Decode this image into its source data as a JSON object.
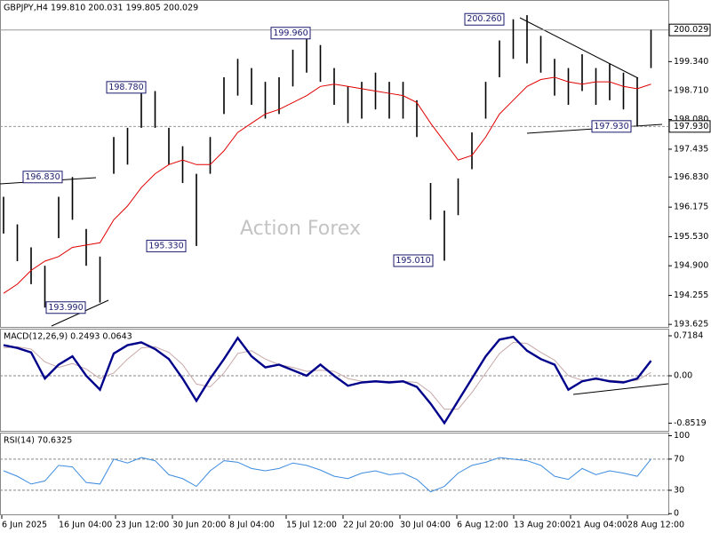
{
  "chart_data": [
    {
      "type": "ohlc",
      "title": "GBPJPY,H4  199.810 200.031 199.805 200.029",
      "watermark": "Action Forex",
      "ylim": [
        193.57,
        200.68
      ],
      "yticks": [
        {
          "value": 199.34,
          "label": "199.340"
        },
        {
          "value": 198.71,
          "label": "198.710"
        },
        {
          "value": 198.08,
          "label": "198.080"
        },
        {
          "value": 197.435,
          "label": "197.435"
        },
        {
          "value": 196.83,
          "label": "196.830"
        },
        {
          "value": 196.175,
          "label": "196.175"
        },
        {
          "value": 195.53,
          "label": "195.530"
        },
        {
          "value": 194.9,
          "label": "194.900"
        },
        {
          "value": 194.255,
          "label": "194.255"
        },
        {
          "value": 193.625,
          "label": "193.625"
        }
      ],
      "series": [
        {
          "name": "High",
          "color": "#000000",
          "values": [
            196.4,
            195.8,
            195.3,
            194.9,
            196.4,
            196.83,
            195.7,
            195.1,
            197.7,
            197.9,
            198.78,
            198.7,
            197.9,
            197.5,
            196.9,
            197.7,
            199.0,
            199.4,
            199.2,
            198.9,
            199.0,
            199.6,
            199.96,
            199.7,
            199.2,
            198.8,
            198.9,
            199.1,
            198.9,
            198.9,
            198.5,
            196.7,
            196.1,
            196.8,
            197.8,
            198.9,
            199.8,
            200.26,
            200.35,
            199.9,
            199.4,
            199.2,
            199.5,
            199.2,
            199.3,
            199.1,
            199.0,
            200.03
          ]
        },
        {
          "name": "Low",
          "color": "#000000",
          "values": [
            195.6,
            195.0,
            194.5,
            193.99,
            195.5,
            195.9,
            194.9,
            194.1,
            196.9,
            197.1,
            197.9,
            197.9,
            197.1,
            196.7,
            195.33,
            196.9,
            198.2,
            198.6,
            198.4,
            198.1,
            198.2,
            198.8,
            199.1,
            198.9,
            198.4,
            198.0,
            198.1,
            198.3,
            198.1,
            198.1,
            197.7,
            195.9,
            195.01,
            196.0,
            197.0,
            198.1,
            199.0,
            199.4,
            199.3,
            199.1,
            198.6,
            198.4,
            198.7,
            198.4,
            198.5,
            198.3,
            197.93,
            199.2
          ]
        },
        {
          "name": "MA",
          "color": "#e00000",
          "values": [
            194.3,
            194.5,
            194.8,
            195.0,
            195.1,
            195.3,
            195.35,
            195.4,
            195.9,
            196.2,
            196.6,
            196.9,
            197.1,
            197.2,
            197.1,
            197.1,
            197.4,
            197.8,
            198.0,
            198.2,
            198.3,
            198.45,
            198.6,
            198.8,
            198.85,
            198.8,
            198.75,
            198.7,
            198.65,
            198.6,
            198.45,
            198.0,
            197.6,
            197.2,
            197.3,
            197.7,
            198.2,
            198.5,
            198.8,
            198.95,
            199.0,
            198.9,
            198.85,
            198.9,
            198.9,
            198.8,
            198.75,
            198.85
          ]
        }
      ],
      "annotations": [
        {
          "label": "200.260",
          "value": 200.26
        },
        {
          "label": "199.960",
          "value": 199.96
        },
        {
          "label": "198.780",
          "value": 198.78
        },
        {
          "label": "196.830",
          "value": 196.83
        },
        {
          "label": "195.330",
          "value": 195.33
        },
        {
          "label": "195.010",
          "value": 195.01
        },
        {
          "label": "193.990",
          "value": 193.99
        },
        {
          "label": "197.930",
          "value": 197.93
        }
      ],
      "price_markers": [
        {
          "value": 200.029,
          "label": "200.029"
        },
        {
          "value": 197.93,
          "label": "197.930"
        }
      ]
    },
    {
      "type": "line",
      "title": "MACD(12,26,9) 0.2493 0.0643",
      "ylim": [
        -0.99,
        0.846
      ],
      "yticks": [
        0.7184,
        {
          "value": 0,
          "label": "0.00"
        },
        -0.8519
      ],
      "series": [
        {
          "name": "MACD",
          "color": "#00008b",
          "values": [
            0.55,
            0.5,
            0.42,
            -0.05,
            0.2,
            0.35,
            0.0,
            -0.25,
            0.4,
            0.55,
            0.6,
            0.48,
            0.3,
            -0.05,
            -0.45,
            -0.05,
            0.3,
            0.68,
            0.35,
            0.15,
            0.2,
            0.1,
            0.0,
            0.2,
            0.0,
            -0.18,
            -0.12,
            -0.1,
            -0.12,
            -0.1,
            -0.2,
            -0.5,
            -0.85,
            -0.45,
            -0.05,
            0.35,
            0.65,
            0.7,
            0.45,
            0.3,
            0.2,
            -0.25,
            -0.1,
            -0.05,
            -0.1,
            -0.12,
            -0.05,
            0.27
          ]
        },
        {
          "name": "Signal",
          "color": "#c8a8a8",
          "values": [
            0.5,
            0.52,
            0.48,
            0.25,
            0.15,
            0.22,
            0.12,
            -0.05,
            0.05,
            0.3,
            0.5,
            0.52,
            0.42,
            0.2,
            -0.15,
            -0.2,
            0.05,
            0.4,
            0.45,
            0.3,
            0.2,
            0.15,
            0.08,
            0.1,
            0.08,
            -0.05,
            -0.1,
            -0.1,
            -0.1,
            -0.1,
            -0.12,
            -0.3,
            -0.6,
            -0.6,
            -0.3,
            0.05,
            0.4,
            0.6,
            0.58,
            0.42,
            0.28,
            0.0,
            -0.08,
            -0.07,
            -0.08,
            -0.1,
            -0.08,
            0.06
          ]
        }
      ]
    },
    {
      "type": "line",
      "title": "RSI(14) 70.6325",
      "ylim": [
        -2,
        104
      ],
      "yticks": [
        100,
        70,
        30,
        0
      ],
      "levels": [
        70,
        30
      ],
      "series": [
        {
          "name": "RSI",
          "color": "#3c8ce0",
          "values": [
            55,
            48,
            38,
            42,
            62,
            60,
            40,
            38,
            70,
            65,
            72,
            68,
            50,
            45,
            35,
            55,
            68,
            66,
            58,
            55,
            58,
            65,
            62,
            56,
            48,
            45,
            52,
            55,
            50,
            52,
            44,
            28,
            35,
            52,
            62,
            66,
            72,
            70,
            68,
            62,
            48,
            44,
            58,
            50,
            55,
            52,
            48,
            70
          ]
        }
      ],
      "x_tick_labels": [
        "6 Jun 2025",
        "16 Jun 04:00",
        "23 Jun 12:00",
        "30 Jun 20:00",
        "8 Jul 04:00",
        "15 Jul 12:00",
        "22 Jul 20:00",
        "30 Jul 04:00",
        "6 Aug 12:00",
        "13 Aug 20:00",
        "21 Aug 04:00",
        "28 Aug 12:00"
      ]
    }
  ]
}
